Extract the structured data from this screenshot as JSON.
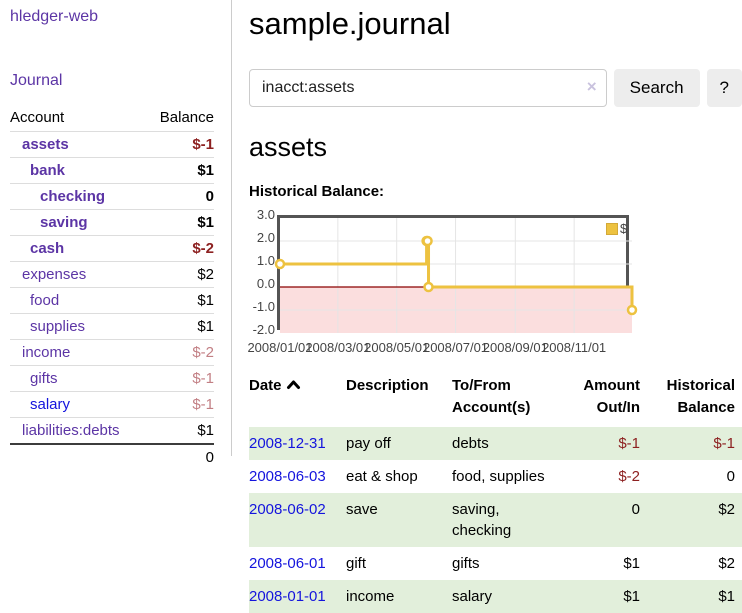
{
  "sidebar": {
    "brand": "hledger-web",
    "nav_journal": "Journal",
    "accounts": {
      "headers": {
        "account": "Account",
        "balance": "Balance"
      },
      "rows": [
        {
          "name": "assets",
          "depth": 1,
          "bold": true,
          "balance": "$-1",
          "bstyle": "neg"
        },
        {
          "name": "bank",
          "depth": 2,
          "bold": true,
          "balance": "$1",
          "bstyle": ""
        },
        {
          "name": "checking",
          "depth": 3,
          "bold": true,
          "balance": "0",
          "bstyle": ""
        },
        {
          "name": "saving",
          "depth": 3,
          "bold": true,
          "balance": "$1",
          "bstyle": ""
        },
        {
          "name": "cash",
          "depth": 2,
          "bold": true,
          "balance": "$-2",
          "bstyle": "neg"
        },
        {
          "name": "expenses",
          "depth": 1,
          "bold": false,
          "balance": "$2",
          "bstyle": ""
        },
        {
          "name": "food",
          "depth": 2,
          "bold": false,
          "balance": "$1",
          "bstyle": ""
        },
        {
          "name": "supplies",
          "depth": 2,
          "bold": false,
          "balance": "$1",
          "bstyle": ""
        },
        {
          "name": "income",
          "depth": 1,
          "bold": false,
          "balance": "$-2",
          "bstyle": "soft"
        },
        {
          "name": "gifts",
          "depth": 2,
          "bold": false,
          "balance": "$-1",
          "bstyle": "soft"
        },
        {
          "name": "salary",
          "depth": 2,
          "bold": false,
          "balance": "$-1",
          "bstyle": "soft",
          "blue": true
        },
        {
          "name": "liabilities:debts",
          "depth": 1,
          "bold": false,
          "balance": "$1",
          "bstyle": ""
        }
      ],
      "total": "0"
    }
  },
  "main": {
    "title": "sample.journal",
    "search": {
      "value": "inacct:assets",
      "clear_icon": "×",
      "search_button": "Search",
      "help_button": "?"
    },
    "account_heading": "assets",
    "chart_heading": "Historical Balance:"
  },
  "chart_data": {
    "type": "line",
    "title": "Historical Balance",
    "legend": "$",
    "legend_position": "top-right",
    "grid": true,
    "ylim": [
      -2,
      3
    ],
    "yticks": [
      "3.0",
      "2.0",
      "1.0",
      "0.0",
      "-1.0",
      "-2.0"
    ],
    "xticks": [
      "2008/01/01",
      "2008/03/01",
      "2008/05/01",
      "2008/07/01",
      "2008/09/01",
      "2008/11/01"
    ],
    "xtick_days": [
      0,
      60,
      121,
      182,
      244,
      305
    ],
    "xlim_days": [
      0,
      365
    ],
    "series": [
      {
        "name": "$",
        "color": "#EDC240",
        "step": true,
        "points": [
          {
            "date": "2008-01-01",
            "day": 0,
            "value": 1
          },
          {
            "date": "2008-06-01",
            "day": 152,
            "value": 2
          },
          {
            "date": "2008-06-02",
            "day": 153,
            "value": 2
          },
          {
            "date": "2008-06-03",
            "day": 154,
            "value": 0
          },
          {
            "date": "2008-12-31",
            "day": 365,
            "value": -1
          }
        ]
      }
    ],
    "negative_region_color": "#fbdede",
    "zero_line_color": "#8b0000"
  },
  "register": {
    "headers": {
      "date": "Date",
      "description": "Description",
      "tofrom": "To/From Account(s)",
      "amount": "Amount Out/In",
      "balance": "Historical Balance"
    },
    "rows": [
      {
        "date": "2008-12-31",
        "description": "pay off",
        "accounts": "debts",
        "amount": "$-1",
        "amount_negative": true,
        "balance": "$-1",
        "balance_negative": true,
        "shaded": true
      },
      {
        "date": "2008-06-03",
        "description": "eat & shop",
        "accounts": "food, supplies",
        "amount": "$-2",
        "amount_negative": true,
        "balance": "0",
        "balance_negative": false,
        "shaded": false
      },
      {
        "date": "2008-06-02",
        "description": "save",
        "accounts": "saving, checking",
        "amount": "0",
        "amount_negative": false,
        "balance": "$2",
        "balance_negative": false,
        "shaded": true
      },
      {
        "date": "2008-06-01",
        "description": "gift",
        "accounts": "gifts",
        "amount": "$1",
        "amount_negative": false,
        "balance": "$2",
        "balance_negative": false,
        "shaded": false
      },
      {
        "date": "2008-01-01",
        "description": "income",
        "accounts": "salary",
        "amount": "$1",
        "amount_negative": false,
        "balance": "$1",
        "balance_negative": false,
        "shaded": true
      }
    ]
  }
}
